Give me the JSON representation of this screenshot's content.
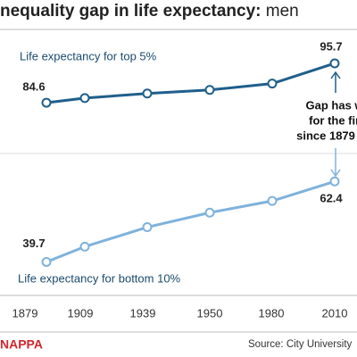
{
  "chart_data": {
    "type": "line",
    "title": "nequality gap in life expectancy:",
    "title_suffix": "men",
    "categories": [
      "1879",
      "1909",
      "1939",
      "1950",
      "1980",
      "2010"
    ],
    "series": [
      {
        "name": "Life expectancy for top 5%",
        "color": "#1f5f8b",
        "values": [
          84.6,
          85.9,
          87.2,
          88.2,
          90.0,
          95.7
        ],
        "value_labels": [
          "84.6",
          null,
          null,
          null,
          null,
          "95.7"
        ]
      },
      {
        "name": "Life expectancy for bottom 10%",
        "color": "#7fb2dc",
        "values": [
          39.7,
          44.0,
          49.5,
          53.6,
          56.9,
          62.4
        ],
        "value_labels": [
          "39.7",
          null,
          null,
          null,
          null,
          "62.4"
        ]
      }
    ],
    "ylim": [
      30,
      104
    ],
    "annotation": [
      "Gap has widene",
      "for the first tim",
      "since 1879"
    ],
    "credit": "NAPPA",
    "source": "Source: City University"
  }
}
